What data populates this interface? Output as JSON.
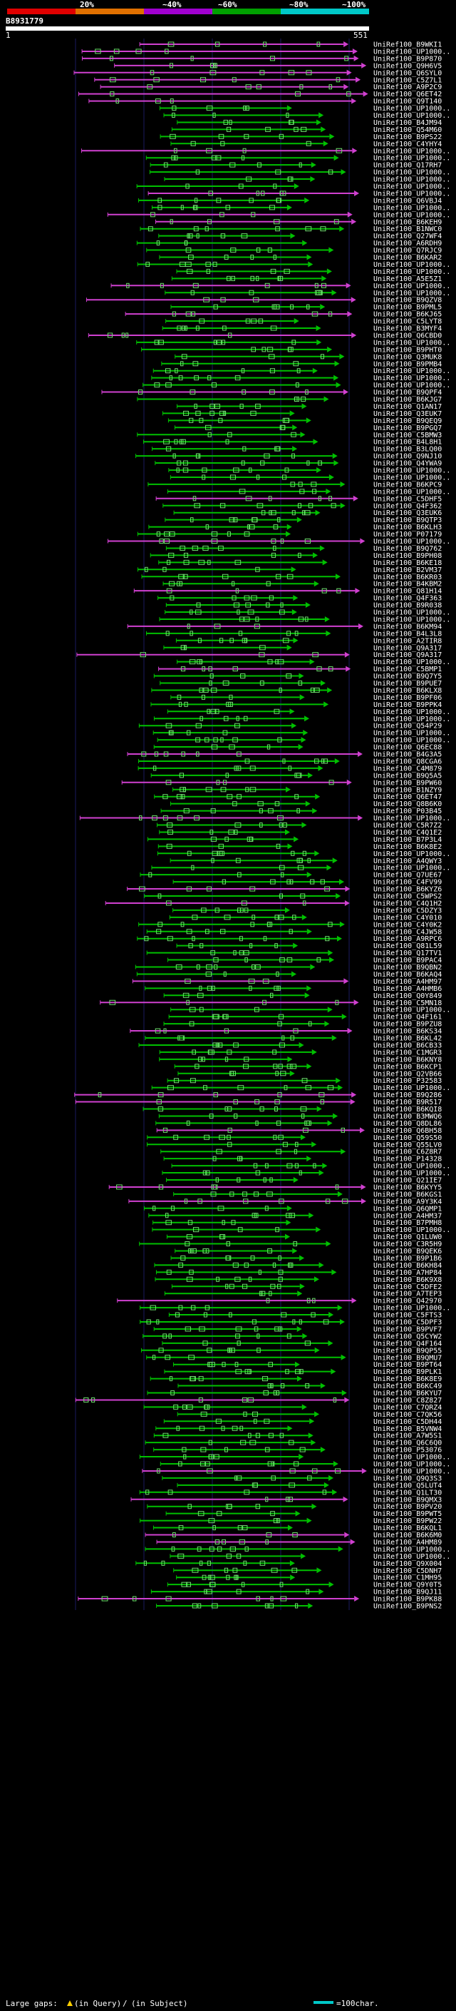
{
  "header": {
    "scale_labels": [
      "20%",
      "~40%",
      "~60%",
      "~80%",
      "~100%"
    ],
    "scale_colors": [
      "#e00000",
      "#e07000",
      "#a000d0",
      "#00a000",
      "#00c8c8"
    ],
    "query_id": "B8931779",
    "query_start": "1",
    "query_end": "551"
  },
  "colors": {
    "green_hit": "#00c000",
    "magenta_hit": "#d040d0",
    "block_outline": "#6ee06e",
    "background": "#000000",
    "gridline": "#1a1a60"
  },
  "hits": [
    "UniRef100_B9WKI1",
    "UniRef100_UP1000..",
    "UniRef100_B9P870",
    "UniRef100_Q9H6V5",
    "UniRef100_Q6SYL0",
    "UniRef100_C5Z7L1",
    "UniRef100_A9P2C9",
    "UniRef100_Q6ET42",
    "UniRef100_Q9T140",
    "UniRef100_UP1000..",
    "UniRef100_UP1000..",
    "UniRef100_B4JM94",
    "UniRef100_Q54M60",
    "UniRef100_B9PS22",
    "UniRef100_C4YHY4",
    "UniRef100_UP1000..",
    "UniRef100_UP1000..",
    "UniRef100_Q17RH7",
    "UniRef100_UP1000..",
    "UniRef100_UP1000..",
    "UniRef100_UP1000..",
    "UniRef100_UP1000..",
    "UniRef100_Q6VBJ4",
    "UniRef100_UP1000..",
    "UniRef100_UP1000..",
    "UniRef100_B6KEH9",
    "UniRef100_B1NWC0",
    "UniRef100_Q27WF4",
    "UniRef100_A6RDH9",
    "UniRef100_Q7RJC9",
    "UniRef100_B6KAR2",
    "UniRef100_UP1000..",
    "UniRef100_UP1000..",
    "UniRef100_A5E5Z1",
    "UniRef100_UP1000..",
    "UniRef100_UP1000..",
    "UniRef100_B9QZV8",
    "UniRef100_B9PML5",
    "UniRef100_B6KJ65",
    "UniRef100_C5LYT8",
    "UniRef100_B3MYF4",
    "UniRef100_Q6CBD0",
    "UniRef100_UP1000..",
    "UniRef100_B9PHT0",
    "UniRef100_Q3MUK8",
    "UniRef100_B9PMB4",
    "UniRef100_UP1000..",
    "UniRef100_UP1000..",
    "UniRef100_UP1000..",
    "UniRef100_B9QPF4",
    "UniRef100_B6KJG7",
    "UniRef100_Q1AN17",
    "UniRef100_Q3EUK7",
    "UniRef100_B9QEQ9",
    "UniRef100_B9PGQ7",
    "UniRef100_C5BMW3",
    "UniRef100_B4L8H1",
    "UniRef100_B3LQ00",
    "UniRef100_Q9NJ10",
    "UniRef100_Q4YWA9",
    "UniRef100_UP1000..",
    "UniRef100_UP1000..",
    "UniRef100_B6KPC9",
    "UniRef100_UP1000..",
    "UniRef100_C5DHF5",
    "UniRef100_Q4F362",
    "UniRef100_Q3EUK6",
    "UniRef100_B9QTP3",
    "UniRef100_B6KLH3",
    "UniRef100_P07179",
    "UniRef100_UP1000..",
    "UniRef100_B9Q762",
    "UniRef100_B9PH08",
    "UniRef100_B6KE18",
    "UniRef100_B2VM37",
    "UniRef100_B6KR03",
    "UniRef100_B4KBM2",
    "UniRef100_Q81H14",
    "UniRef100_Q4F363",
    "UniRef100_B9R038",
    "UniRef100_UP1000..",
    "UniRef100_UP1000..",
    "UniRef100_B6KM94",
    "UniRef100_B4L3L8",
    "UniRef100_A2TIR8",
    "UniRef100_Q9A317",
    "UniRef100_Q9A317",
    "UniRef100_UP1000..",
    "UniRef100_C5BMP1",
    "UniRef100_B9Q7Y5",
    "UniRef100_B9PUE7",
    "UniRef100_B6KLX8",
    "UniRef100_B9PF06",
    "UniRef100_B9PPK4",
    "UniRef100_UP1000..",
    "UniRef100_UP1000..",
    "UniRef100_Q54P29",
    "UniRef100_UP1000..",
    "UniRef100_UP1000..",
    "UniRef100_Q6EC88",
    "UniRef100_B4G3A5",
    "UniRef100_Q8CGA6",
    "UniRef100_C4M879",
    "UniRef100_B9Q5A5",
    "UniRef100_B9PW60",
    "UniRef100_B1NZY9",
    "UniRef100_Q6ET47",
    "UniRef100_Q8B6K0",
    "UniRef100_P03B45",
    "UniRef100_UP1000..",
    "UniRef100_C5R7Z2",
    "UniRef100_C4Q1E2",
    "UniRef100_B7P3L4",
    "UniRef100_B6K8E2",
    "UniRef100_UP1000..",
    "UniRef100_A4QWY3",
    "UniRef100_UP1000..",
    "UniRef100_Q7UE67",
    "UniRef100_C4FV99",
    "UniRef100_B6KYZ6",
    "UniRef100_C5WPS2",
    "UniRef100_C4Q1H2",
    "UniRef100_C5DZY3",
    "UniRef100_C4Y010",
    "UniRef100_C4Y0K2",
    "UniRef100_C4JW58",
    "UniRef100_A9RPC6",
    "UniRef100_Q81L59",
    "UniRef100_Q17TV1",
    "UniRef100_B9PAC4",
    "UniRef100_B9QBN2",
    "UniRef100_B6KAQ4",
    "UniRef100_A4HM97",
    "UniRef100_A4HMB6",
    "UniRef100_Q0Y849",
    "UniRef100_C5MN18",
    "UniRef100_UP1000..",
    "UniRef100_Q4F161",
    "UniRef100_B9PZU8",
    "UniRef100_B6KS34",
    "UniRef100_B6KL42",
    "UniRef100_B6CB33",
    "UniRef100_C1MGR3",
    "UniRef100_B6KNY8",
    "UniRef100_B6KCP1",
    "UniRef100_Q2VB66",
    "UniRef100_P32583",
    "UniRef100_UP1000..",
    "UniRef100_B9Q286",
    "UniRef100_B9R517",
    "UniRef100_B6KQI8",
    "UniRef100_B3MWQ6",
    "UniRef100_Q8DL86",
    "UniRef100_Q6BH58",
    "UniRef100_Q59S50",
    "UniRef100_Q55LV0",
    "UniRef100_C6Z8R7",
    "UniRef100_P14328",
    "UniRef100_UP1000..",
    "UniRef100_UP1000..",
    "UniRef100_Q21IE7",
    "UniRef100_B6KYY5",
    "UniRef100_B6KGS1",
    "UniRef100_A9Y3K4",
    "UniRef100_Q6QMP1",
    "UniRef100_A4HM37",
    "UniRef100_B7PMH8",
    "UniRef100_UP1000..",
    "UniRef100_Q1LUW0",
    "UniRef100_C3R5H9",
    "UniRef100_B9QEK6",
    "UniRef100_B9P1B6",
    "UniRef100_B6KH84",
    "UniRef100_A7HP84",
    "UniRef100_B6K9X8",
    "UniRef100_C5DFE2",
    "UniRef100_A7TEP3",
    "UniRef100_Q42970",
    "UniRef100_UP1000..",
    "UniRef100_C5FTS3",
    "UniRef100_C5DPF3",
    "UniRef100_B9PVF7",
    "UniRef100_Q5CYW2",
    "UniRef100_Q4F164",
    "UniRef100_B9QP55",
    "UniRef100_B9QMU7",
    "UniRef100_B9PT64",
    "UniRef100_B9PLK1",
    "UniRef100_B6K8E9",
    "UniRef100_B6KC49",
    "UniRef100_B6KYU7",
    "UniRef100_C8Z827",
    "UniRef100_C7QRZ4",
    "UniRef100_C7QK56",
    "UniRef100_C5DH44",
    "UniRef100_B5VNW4",
    "UniRef100_A7W5S1",
    "UniRef100_Q6C6Q0",
    "UniRef100_P53076",
    "UniRef100_UP1000..",
    "UniRef100_UP1000..",
    "UniRef100_UP1000..",
    "UniRef100_Q9Q3S3",
    "UniRef100_Q5LUT4",
    "UniRef100_Q1LT30",
    "UniRef100_B9QMX3",
    "UniRef100_B9PV20",
    "UniRef100_B9PWT5",
    "UniRef100_B9PW22",
    "UniRef100_B6KQL1",
    "UniRef100_B6K6M0",
    "UniRef100_A4HM89",
    "UniRef100_UP1000..",
    "UniRef100_UP1000..",
    "UniRef100_Q9X004",
    "UniRef100_C5DNH7",
    "UniRef100_C1MH95",
    "UniRef100_Q9Y0T5",
    "UniRef100_B9QJ11",
    "UniRef100_B9PK88",
    "UniRef100_B9PNS2"
  ],
  "legend": {
    "large_gaps_label": "Large gaps:",
    "in_query_label": "(in Query)",
    "in_subject_label": "(in Subject)",
    "scale_note": "=100char."
  }
}
